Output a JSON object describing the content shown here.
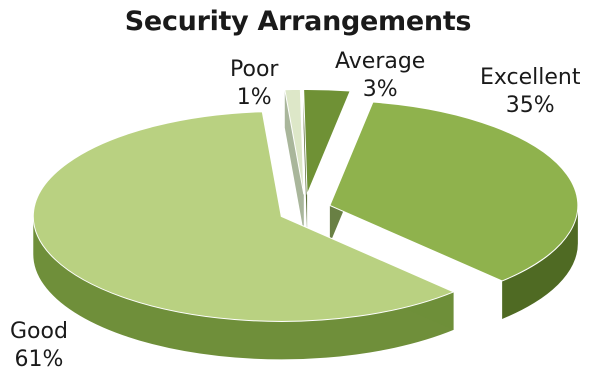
{
  "chart_data": {
    "type": "pie",
    "title": "Security Arrangements",
    "style": "3d-exploded",
    "categories": [
      "Excellent",
      "Good",
      "Poor",
      "Average"
    ],
    "values": [
      35,
      61,
      1,
      3
    ],
    "labels": [
      "35%",
      "61%",
      "1%",
      "3%"
    ],
    "colors": {
      "Excellent": {
        "top": "#8fb24d",
        "side": "#4f6a23"
      },
      "Good": {
        "top": "#b9d181",
        "side": "#6f8f3a"
      },
      "Poor": {
        "top": "#dde7c8",
        "side": "#9aa98a"
      },
      "Average": {
        "top": "#6f9135",
        "side": "#3f5718"
      }
    }
  }
}
